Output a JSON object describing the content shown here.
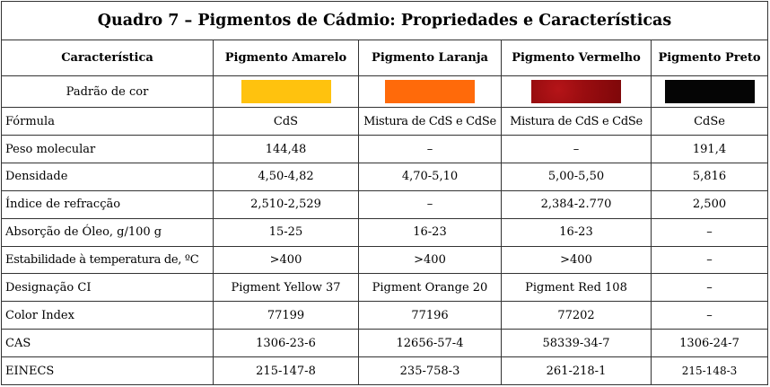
{
  "title": "Quadro 7 – Pigmentos de Cádmio: Propriedades e Características",
  "headers": [
    "Característica",
    "Pigmento Amarelo",
    "Pigmento Laranja",
    "Pigmento Vermelho",
    "Pigmento Preto"
  ],
  "swatch_row": {
    "label": "Padrão de cor",
    "colors": [
      "#ffc20e",
      "#ff6a0a",
      "#9a0d10",
      "#050505"
    ]
  },
  "rows": [
    {
      "label": "Fórmula",
      "values": [
        "CdS",
        "Mistura de CdS e CdSe",
        "Mistura de CdS e CdSe",
        "CdSe"
      ]
    },
    {
      "label": "Peso molecular",
      "values": [
        "144,48",
        "–",
        "–",
        "191,4"
      ]
    },
    {
      "label": "Densidade",
      "values": [
        "4,50-4,82",
        "4,70-5,10",
        "5,00-5,50",
        "5,816"
      ]
    },
    {
      "label": "Índice de refracção",
      "values": [
        "2,510-2,529",
        "–",
        "2,384-2.770",
        "2,500"
      ]
    },
    {
      "label": "Absorção de Óleo, g/100 g",
      "values": [
        "15-25",
        "16-23",
        "16-23",
        "–"
      ]
    },
    {
      "label": "Estabilidade à temperatura de, ºC",
      "values": [
        ">400",
        ">400",
        ">400",
        "–"
      ]
    },
    {
      "label": "Designação CI",
      "values": [
        "Pigment Yellow 37",
        "Pigment Orange 20",
        "Pigment Red 108",
        "–"
      ]
    },
    {
      "label": "Color Index",
      "values": [
        "77199",
        "77196",
        "77202",
        "–"
      ]
    },
    {
      "label": "CAS",
      "values": [
        "1306-23-6",
        "12656-57-4",
        "58339-34-7",
        "1306-24-7"
      ]
    },
    {
      "label": "EINECS",
      "values": [
        "215-147-8",
        "235-758-3",
        "261-218-1",
        "215-148-3"
      ]
    }
  ]
}
